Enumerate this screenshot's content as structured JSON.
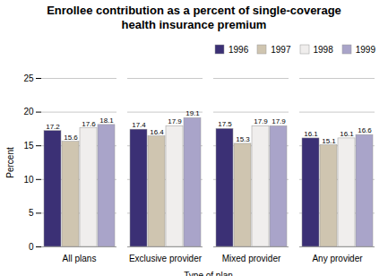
{
  "chart_data": {
    "type": "bar",
    "title": "Enrollee contribution as a percent of single-coverage\nhealth insurance premium",
    "xlabel": "Type of plan",
    "ylabel": "Percent",
    "categories": [
      "All plans",
      "Exclusive provider",
      "Mixed provider",
      "Any provider"
    ],
    "series": [
      {
        "name": "1996",
        "color": "#3b3075",
        "values": [
          17.2,
          17.4,
          17.5,
          16.1
        ]
      },
      {
        "name": "1997",
        "color": "#cfc5b0",
        "values": [
          15.6,
          16.4,
          15.3,
          15.1
        ]
      },
      {
        "name": "1998",
        "color": "#f0eeed",
        "values": [
          17.6,
          17.9,
          17.9,
          16.1
        ]
      },
      {
        "name": "1999",
        "color": "#a9a4c9",
        "values": [
          18.1,
          19.1,
          17.9,
          16.6
        ]
      }
    ],
    "ylim": [
      0,
      25
    ],
    "yticks": [
      0,
      5,
      10,
      15,
      20,
      25
    ],
    "grid": true,
    "legend": "upper right",
    "data_labels": true
  }
}
